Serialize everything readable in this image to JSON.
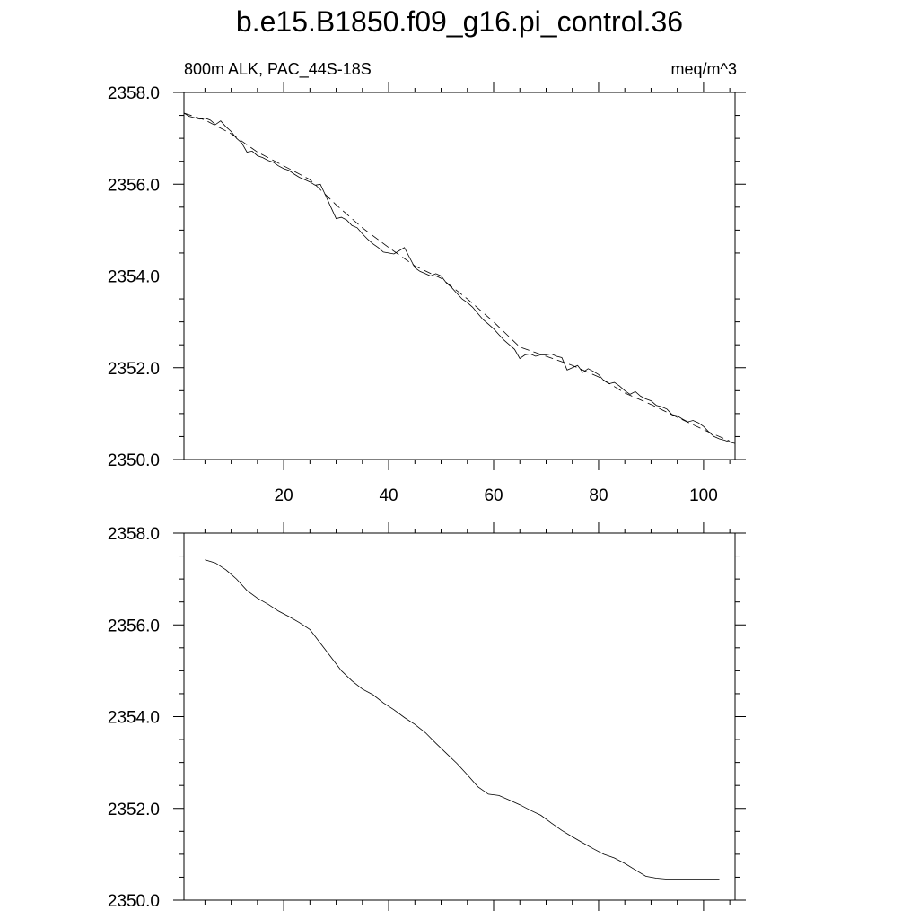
{
  "title": "b.e15.B1850.f09_g16.pi_control.36",
  "chart_data": [
    {
      "type": "line",
      "title_left": "800m ALK, PAC_44S-18S",
      "title_right": "meq/m^3",
      "xlim": [
        1,
        106
      ],
      "ylim": [
        2350.0,
        2358.0
      ],
      "xticks": [
        20,
        40,
        60,
        80,
        100
      ],
      "yticks": [
        "2350.0",
        "2352.0",
        "2354.0",
        "2356.0",
        "2358.0"
      ],
      "series": [
        {
          "style": "solid",
          "x": [
            1,
            2,
            3,
            4,
            5,
            6,
            7,
            8,
            9,
            10,
            11,
            12,
            13,
            14,
            15,
            16,
            17,
            18,
            19,
            20,
            21,
            22,
            23,
            24,
            25,
            26,
            27,
            28,
            29,
            30,
            31,
            32,
            33,
            34,
            35,
            36,
            37,
            38,
            39,
            40,
            41,
            42,
            43,
            44,
            45,
            46,
            47,
            48,
            49,
            50,
            51,
            52,
            53,
            54,
            55,
            56,
            57,
            58,
            59,
            60,
            61,
            62,
            63,
            64,
            65,
            66,
            67,
            68,
            69,
            70,
            71,
            72,
            73,
            74,
            75,
            76,
            77,
            78,
            79,
            80,
            81,
            82,
            83,
            84,
            85,
            86,
            87,
            88,
            89,
            90,
            91,
            92,
            93,
            94,
            95,
            96,
            97,
            98,
            99,
            100,
            101,
            102,
            103,
            104,
            105,
            106
          ],
          "y": [
            2357.55,
            2357.48,
            2357.45,
            2357.42,
            2357.44,
            2357.4,
            2357.3,
            2357.38,
            2357.25,
            2357.15,
            2357.0,
            2356.9,
            2356.7,
            2356.72,
            2356.62,
            2356.58,
            2356.52,
            2356.48,
            2356.4,
            2356.34,
            2356.3,
            2356.22,
            2356.15,
            2356.1,
            2356.05,
            2355.98,
            2356.0,
            2355.75,
            2355.5,
            2355.25,
            2355.28,
            2355.22,
            2355.1,
            2355.05,
            2354.92,
            2354.8,
            2354.7,
            2354.62,
            2354.52,
            2354.5,
            2354.48,
            2354.55,
            2354.62,
            2354.4,
            2354.18,
            2354.1,
            2354.05,
            2354.0,
            2354.05,
            2354.0,
            2353.85,
            2353.75,
            2353.62,
            2353.5,
            2353.42,
            2353.32,
            2353.18,
            2353.05,
            2352.95,
            2352.85,
            2352.72,
            2352.6,
            2352.5,
            2352.4,
            2352.2,
            2352.28,
            2352.3,
            2352.25,
            2352.28,
            2352.28,
            2352.3,
            2352.25,
            2352.22,
            2351.95,
            2352.0,
            2352.05,
            2351.9,
            2351.98,
            2351.92,
            2351.85,
            2351.72,
            2351.65,
            2351.68,
            2351.6,
            2351.5,
            2351.42,
            2351.48,
            2351.38,
            2351.32,
            2351.28,
            2351.18,
            2351.15,
            2351.1,
            2350.98,
            2350.95,
            2350.88,
            2350.82,
            2350.85,
            2350.8,
            2350.72,
            2350.6,
            2350.5,
            2350.45,
            2350.42,
            2350.38,
            2350.35
          ]
        },
        {
          "style": "dashed",
          "x": [
            1,
            5,
            10,
            15,
            20,
            25,
            30,
            35,
            40,
            45,
            50,
            55,
            60,
            65,
            70,
            75,
            80,
            85,
            90,
            95,
            100,
            105
          ],
          "y": [
            2357.55,
            2357.4,
            2357.1,
            2356.7,
            2356.4,
            2356.1,
            2355.55,
            2355.05,
            2354.62,
            2354.22,
            2353.95,
            2353.5,
            2353.0,
            2352.45,
            2352.25,
            2352.05,
            2351.8,
            2351.45,
            2351.2,
            2350.92,
            2350.65,
            2350.4
          ]
        }
      ]
    },
    {
      "type": "line",
      "xlim": [
        1,
        106
      ],
      "ylim": [
        2350.0,
        2358.0
      ],
      "xticks": [
        20,
        40,
        60,
        80,
        100
      ],
      "yticks": [
        "2350.0",
        "2352.0",
        "2354.0",
        "2356.0",
        "2358.0"
      ],
      "series": [
        {
          "style": "solid",
          "x": [
            5,
            7,
            9,
            11,
            13,
            15,
            17,
            19,
            21,
            23,
            25,
            27,
            29,
            31,
            33,
            35,
            37,
            39,
            41,
            43,
            45,
            47,
            49,
            51,
            53,
            55,
            57,
            59,
            61,
            63,
            65,
            67,
            69,
            71,
            73,
            75,
            77,
            79,
            81,
            83,
            85,
            87,
            89,
            91,
            93,
            95,
            97,
            99,
            101,
            103
          ],
          "y": [
            2357.42,
            2357.35,
            2357.2,
            2357.0,
            2356.75,
            2356.58,
            2356.45,
            2356.3,
            2356.18,
            2356.05,
            2355.9,
            2355.6,
            2355.3,
            2355.0,
            2354.78,
            2354.6,
            2354.48,
            2354.3,
            2354.15,
            2353.98,
            2353.83,
            2353.65,
            2353.42,
            2353.2,
            2352.98,
            2352.73,
            2352.47,
            2352.31,
            2352.28,
            2352.18,
            2352.08,
            2351.96,
            2351.85,
            2351.68,
            2351.52,
            2351.38,
            2351.25,
            2351.12,
            2351.0,
            2350.92,
            2350.8,
            2350.66,
            2350.52,
            2350.48,
            2350.46,
            2350.46,
            2350.46,
            2350.46,
            2350.46,
            2350.46
          ]
        }
      ]
    }
  ]
}
